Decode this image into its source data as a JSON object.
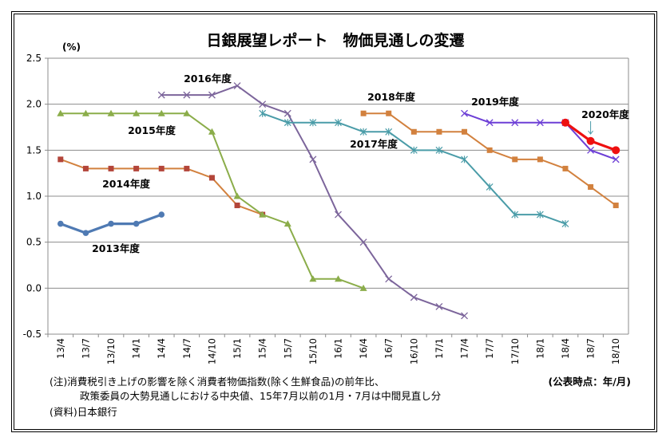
{
  "chart_data": {
    "type": "line",
    "title": "日銀展望レポート　物価見通しの変遷",
    "unit": "(%)",
    "ylim": [
      -0.5,
      2.5
    ],
    "yticks": [
      "2.5",
      "2.0",
      "1.5",
      "1.0",
      "0.5",
      "0.0",
      "-0.5"
    ],
    "categories": [
      "13/4",
      "13/7",
      "13/10",
      "14/1",
      "14/4",
      "14/7",
      "14/10",
      "15/1",
      "15/4",
      "15/7",
      "15/10",
      "16/1",
      "16/4",
      "16/7",
      "16/10",
      "17/1",
      "17/4",
      "17/7",
      "17/10",
      "18/1",
      "18/4",
      "18/7",
      "18/10"
    ],
    "grid": true,
    "series": [
      {
        "name": "2013年度",
        "color": "#4f7ab3",
        "marker": "circle",
        "values": [
          0.7,
          0.6,
          0.7,
          0.7,
          0.8,
          null,
          null,
          null,
          null,
          null,
          null,
          null,
          null,
          null,
          null,
          null,
          null,
          null,
          null,
          null,
          null,
          null,
          null
        ]
      },
      {
        "name": "2014年度",
        "color": "#d2813e",
        "marker": "square",
        "values": [
          1.4,
          1.3,
          1.3,
          1.3,
          1.3,
          1.3,
          1.2,
          0.9,
          0.8,
          null,
          null,
          null,
          null,
          null,
          null,
          null,
          null,
          null,
          null,
          null,
          null,
          null,
          null
        ]
      },
      {
        "name": "2015年度",
        "color": "#8bad4a",
        "marker": "triangle",
        "values": [
          1.9,
          1.9,
          1.9,
          1.9,
          1.9,
          1.9,
          1.7,
          1.0,
          0.8,
          0.7,
          0.1,
          0.1,
          0.0,
          null,
          null,
          null,
          null,
          null,
          null,
          null,
          null,
          null,
          null
        ]
      },
      {
        "name": "2016年度",
        "color": "#7c659b",
        "marker": "cross",
        "values": [
          null,
          null,
          null,
          null,
          2.1,
          2.1,
          2.1,
          2.2,
          2.0,
          1.9,
          1.4,
          0.8,
          0.5,
          0.1,
          -0.1,
          -0.2,
          -0.3,
          null,
          null,
          null,
          null,
          null,
          null
        ]
      },
      {
        "name": "2017年度",
        "color": "#4a9ca8",
        "marker": "star",
        "values": [
          null,
          null,
          null,
          null,
          null,
          null,
          null,
          null,
          1.9,
          1.8,
          1.8,
          1.8,
          1.7,
          1.7,
          1.5,
          1.5,
          1.4,
          1.1,
          0.8,
          0.8,
          0.7,
          null,
          null
        ]
      },
      {
        "name": "2018年度",
        "color": "#d2813e",
        "marker": "square",
        "values": [
          null,
          null,
          null,
          null,
          null,
          null,
          null,
          null,
          null,
          null,
          null,
          null,
          1.9,
          1.9,
          1.7,
          1.7,
          1.7,
          1.5,
          1.4,
          1.4,
          1.3,
          1.1,
          0.9
        ]
      },
      {
        "name": "2019年度",
        "color": "#6d3fd6",
        "marker": "cross",
        "values": [
          null,
          null,
          null,
          null,
          null,
          null,
          null,
          null,
          null,
          null,
          null,
          null,
          null,
          null,
          null,
          null,
          1.9,
          1.8,
          1.8,
          1.8,
          1.8,
          1.5,
          1.4
        ]
      },
      {
        "name": "2020年度",
        "color": "#ee1010",
        "marker": "circle",
        "values": [
          null,
          null,
          null,
          null,
          null,
          null,
          null,
          null,
          null,
          null,
          null,
          null,
          null,
          null,
          null,
          null,
          null,
          null,
          null,
          null,
          1.8,
          1.6,
          1.5
        ]
      }
    ],
    "annotations": {
      "source_point": "(公表時点：年/月)",
      "note_line1": "(注)消費税引き上げの影響を除く消費者物価指数(除く生鮮食品)の前年比、",
      "note_line2": "政策委員の大勢見通しにおける中央値、15年7月以前の1月・7月は中間見直し分",
      "source": "(資料)日本銀行"
    }
  }
}
